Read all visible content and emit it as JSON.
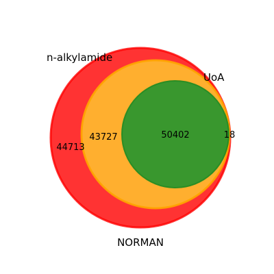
{
  "diagram": {
    "type": "venn-3-nested",
    "sets": [
      {
        "name": "n-alkylamide",
        "color": "#ff0000",
        "edge_color": "#ff0000"
      },
      {
        "name": "UoA",
        "color": "#ffa500",
        "edge_color": "#ffa500"
      },
      {
        "name": "NORMAN",
        "color": "#228b22",
        "edge_color": "#228b22"
      }
    ],
    "regions": {
      "red_only": "44713",
      "orange_only": "43727",
      "green_inside": "50402",
      "right_sliver": "18"
    }
  }
}
